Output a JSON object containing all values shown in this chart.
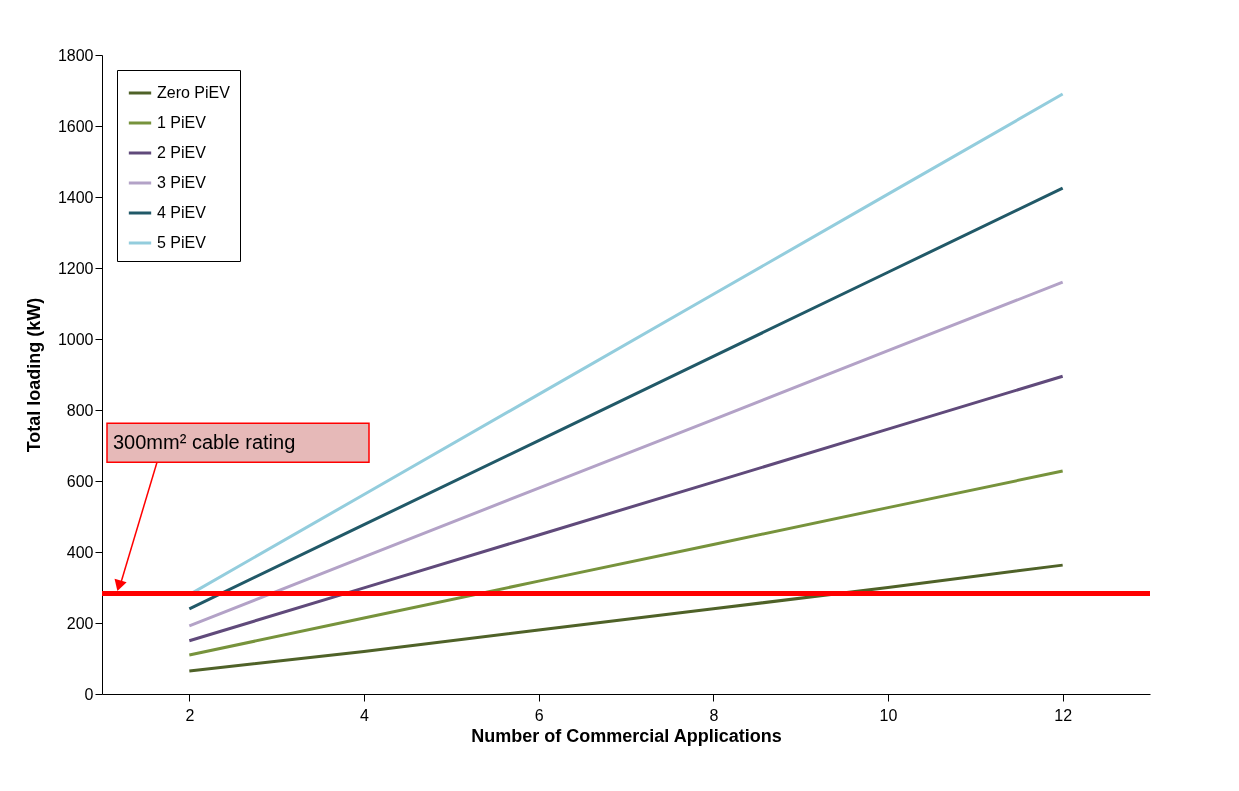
{
  "chart_data": {
    "type": "line",
    "xlabel": "Number of Commercial Applications",
    "ylabel": "Total loading (kW)",
    "categories": [
      "2",
      "4",
      "6",
      "8",
      "10",
      "12"
    ],
    "series": [
      {
        "name": "Zero PiEV",
        "color": "#4f6228",
        "values": [
          65,
          120,
          180,
          240,
          300,
          363
        ]
      },
      {
        "name": "1 PiEV",
        "color": "#77933c",
        "values": [
          110,
          214,
          318,
          421,
          525,
          628
        ]
      },
      {
        "name": "2 PiEV",
        "color": "#604a7b",
        "values": [
          150,
          299,
          448,
          597,
          746,
          895
        ]
      },
      {
        "name": "3 PiEV",
        "color": "#b3a2c7",
        "values": [
          192,
          386,
          580,
          773,
          967,
          1160
        ]
      },
      {
        "name": "4 PiEV",
        "color": "#215968",
        "values": [
          240,
          477,
          714,
          951,
          1188,
          1425
        ]
      },
      {
        "name": "5 PiEV",
        "color": "#93cddd",
        "values": [
          280,
          562,
          844,
          1126,
          1408,
          1690
        ]
      }
    ],
    "ylim": [
      0,
      1800
    ],
    "yticks": [
      0,
      200,
      400,
      600,
      800,
      1000,
      1200,
      1400,
      1600,
      1800
    ],
    "ref_lines": [
      {
        "axis": "y",
        "value": 283,
        "label": "300mm² cable rating",
        "color": "#ff0000"
      }
    ],
    "grid": false,
    "legend": "top left",
    "marker": "none",
    "line_style": "solid"
  }
}
